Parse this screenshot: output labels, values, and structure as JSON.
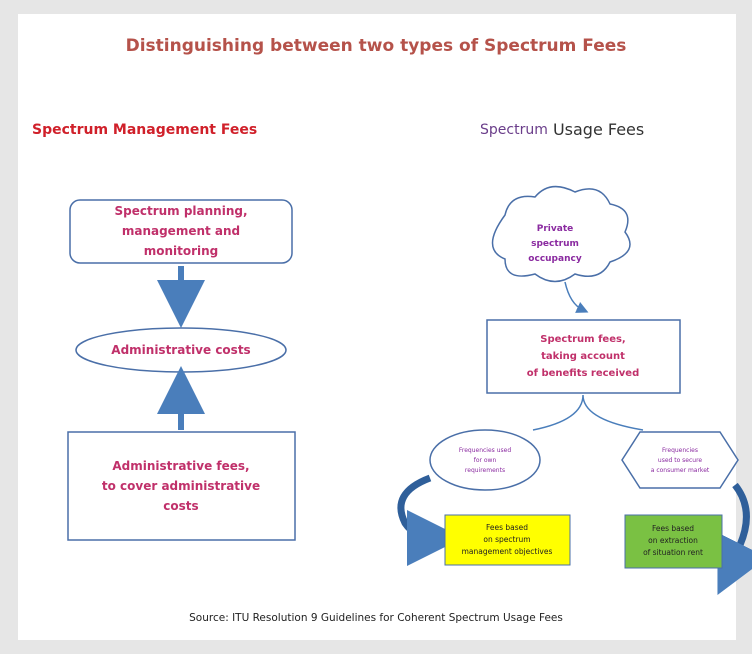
{
  "title": "Distinguishing between two types of Spectrum Fees",
  "left_heading": "Spectrum Management Fees",
  "right_heading": {
    "part1": "Spectrum",
    "part2": "Usage Fees"
  },
  "nodes": [
    {
      "lines": [
        "Spectrum planning,",
        "management and",
        "monitoring"
      ]
    },
    {
      "lines": [
        "Administrative costs"
      ]
    },
    {
      "lines": [
        "Administrative fees,",
        "to cover administrative",
        "costs"
      ]
    },
    {
      "lines": [
        "Private",
        "spectrum",
        "occupancy"
      ]
    },
    {
      "lines": [
        "Spectrum fees,",
        "taking account",
        "of benefits received"
      ]
    },
    {
      "lines": [
        "Frequencies used",
        "for own",
        "requirements"
      ]
    },
    {
      "lines": [
        "Frequencies",
        "used to secure",
        "a consumer market"
      ]
    },
    {
      "lines": [
        "Fees based",
        "on spectrum",
        "management objectives"
      ]
    },
    {
      "lines": [
        "Fees based",
        "on extraction",
        "of situation rent"
      ]
    }
  ],
  "source": "Source: ITU Resolution 9 Guidelines for Coherent Spectrum Usage Fees"
}
